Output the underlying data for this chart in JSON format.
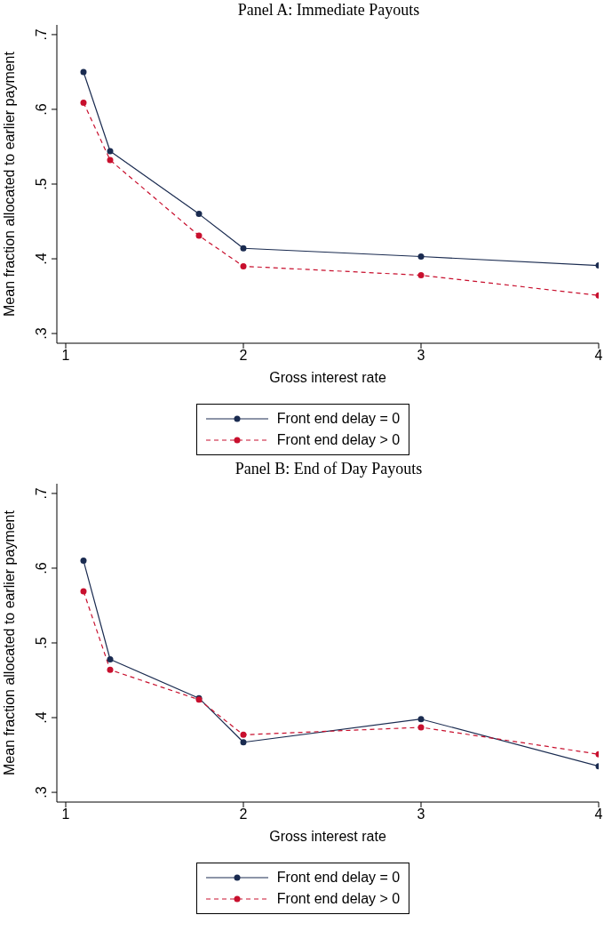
{
  "chart_data": [
    {
      "type": "line",
      "title": "Panel A: Immediate Payouts",
      "xlabel": "Gross interest rate",
      "ylabel": "Mean fraction allocated to earlier payment",
      "x": [
        1.1,
        1.25,
        1.75,
        2,
        3,
        4
      ],
      "series": [
        {
          "name": "Front end delay = 0",
          "color": "#1a2b50",
          "line_style": "solid",
          "values": [
            0.65,
            0.544,
            0.46,
            0.414,
            0.403,
            0.391
          ]
        },
        {
          "name": "Front end delay > 0",
          "color": "#c8102e",
          "line_style": "dashed",
          "values": [
            0.609,
            0.532,
            0.431,
            0.39,
            0.378,
            0.351
          ]
        }
      ],
      "xlim": [
        0.95,
        4
      ],
      "xticks": [
        1,
        2,
        3,
        4
      ],
      "ylim": [
        0.287,
        0.713
      ],
      "yticks": [
        {
          "value": 0.3,
          "label": ".3"
        },
        {
          "value": 0.4,
          "label": ".4"
        },
        {
          "value": 0.5,
          "label": ".5"
        },
        {
          "value": 0.6,
          "label": ".6"
        },
        {
          "value": 0.7,
          "label": ".7"
        }
      ],
      "marker": "circle",
      "grid": false,
      "legend": "bottom"
    },
    {
      "type": "line",
      "title": "Panel B: End of Day Payouts",
      "xlabel": "Gross interest rate",
      "ylabel": "Mean fraction allocated to earlier payment",
      "x": [
        1.1,
        1.25,
        1.75,
        2,
        3,
        4
      ],
      "series": [
        {
          "name": "Front end delay = 0",
          "color": "#1a2b50",
          "line_style": "solid",
          "values": [
            0.61,
            0.478,
            0.426,
            0.367,
            0.398,
            0.335
          ]
        },
        {
          "name": "Front end delay > 0",
          "color": "#c8102e",
          "line_style": "dashed",
          "values": [
            0.569,
            0.464,
            0.424,
            0.377,
            0.387,
            0.351
          ]
        }
      ],
      "xlim": [
        0.95,
        4
      ],
      "xticks": [
        1,
        2,
        3,
        4
      ],
      "ylim": [
        0.287,
        0.713
      ],
      "yticks": [
        {
          "value": 0.3,
          "label": ".3"
        },
        {
          "value": 0.4,
          "label": ".4"
        },
        {
          "value": 0.5,
          "label": ".5"
        },
        {
          "value": 0.6,
          "label": ".6"
        },
        {
          "value": 0.7,
          "label": ".7"
        }
      ],
      "marker": "circle",
      "grid": false,
      "legend": "bottom"
    }
  ]
}
